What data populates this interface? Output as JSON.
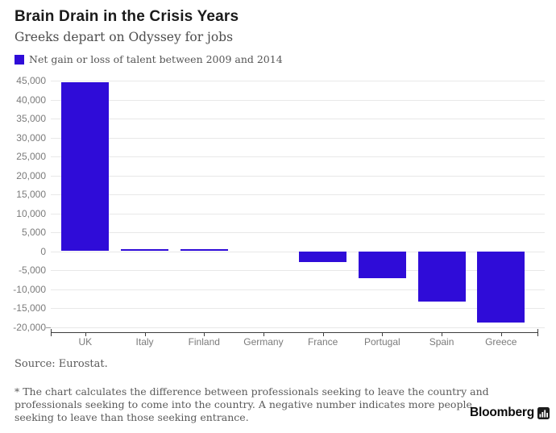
{
  "header": {
    "title": "Brain Drain in the Crisis Years",
    "subtitle": "Greeks depart on Odyssey for jobs"
  },
  "legend": {
    "label": "Net gain or loss of talent between 2009 and 2014",
    "color": "#2f0cd8"
  },
  "chart_data": {
    "type": "bar",
    "title": "Brain Drain in the Crisis Years",
    "subtitle": "Greeks depart on Odyssey for jobs",
    "series_label": "Net gain or loss of talent between 2009 and 2014",
    "categories": [
      "UK",
      "Italy",
      "Finland",
      "Germany",
      "France",
      "Portugal",
      "Spain",
      "Greece"
    ],
    "values": [
      44500,
      600,
      600,
      0,
      -2800,
      -7200,
      -13200,
      -18800
    ],
    "bar_color": "#2f0cd8",
    "ylim": [
      -20000,
      45000
    ],
    "ytick_step": 5000,
    "xlabel": "",
    "ylabel": "",
    "grid": true,
    "legend_position": "top-left"
  },
  "notes": {
    "source": "Source: Eurostat.",
    "footnote": "* The chart calculates the difference between professionals seeking to leave the country and professionals seeking to come into the country. A negative number indicates more people seeking to leave than those seeking entrance."
  },
  "branding": {
    "name": "Bloomberg",
    "icon": "bar-chart-icon"
  }
}
